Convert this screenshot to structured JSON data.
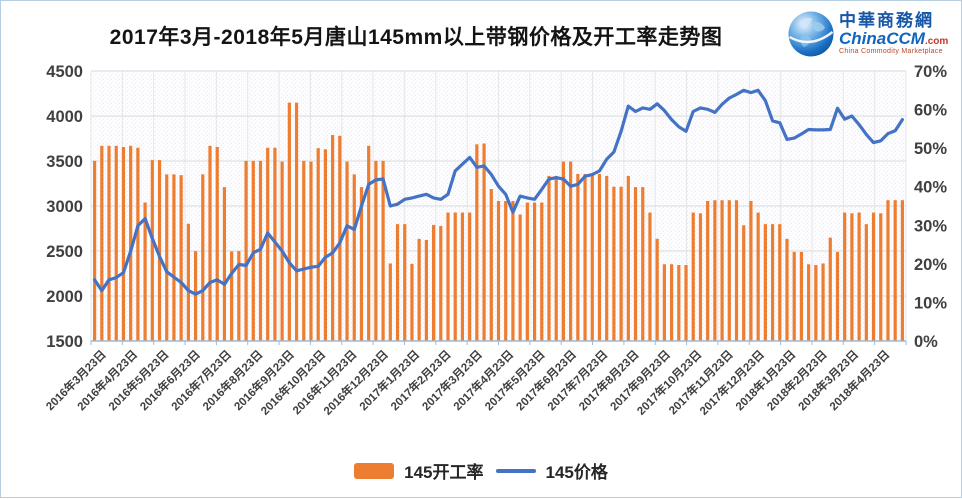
{
  "header": {
    "title": "2017年3月-2018年5月唐山145mm以上带钢价格及开工率走势图",
    "logo": {
      "cn_name": "中華商務網",
      "en_name": "ChinaCCM",
      "domain": ".com",
      "tagline": "China Commodity Marketplace"
    }
  },
  "chart_data": {
    "type": "combo",
    "title": "2017年3月-2018年5月唐山145mm以上带钢价格及开工率走势图",
    "grid": true,
    "legend_position": "bottom",
    "left_axis": {
      "min": 1500,
      "max": 4500,
      "step": 500,
      "tick_labels": [
        "4500",
        "4000",
        "3500",
        "3000",
        "2500",
        "2000",
        "1500"
      ]
    },
    "right_axis": {
      "min": 0,
      "max": 70,
      "step": 10,
      "tick_labels": [
        "70%",
        "60%",
        "50%",
        "40%",
        "30%",
        "20%",
        "10%",
        "0%"
      ]
    },
    "x_labels": [
      "2016年3月23日",
      "2016年4月23日",
      "2016年5月23日",
      "2016年6月23日",
      "2016年7月23日",
      "2016年8月23日",
      "2016年9月23日",
      "2016年10月23日",
      "2016年11月23日",
      "2016年12月23日",
      "2017年1月23日",
      "2017年2月23日",
      "2017年3月23日",
      "2017年4月23日",
      "2017年5月23日",
      "2017年6月23日",
      "2017年7月23日",
      "2017年8月23日",
      "2017年9月23日",
      "2017年10月23日",
      "2017年11月23日",
      "2017年12月23日",
      "2018年1月23日",
      "2018年2月23日",
      "2018年3月23日",
      "2018年4月23日"
    ],
    "series": [
      {
        "name": "145开工率",
        "type": "bar",
        "axis": "right",
        "unit": "%",
        "color": "#ED7D31",
        "values": [
          46.7,
          50.6,
          50.6,
          50.6,
          50.3,
          50.6,
          50.1,
          35.9,
          46.9,
          46.9,
          43.2,
          43.2,
          43,
          30.4,
          23.3,
          43.2,
          50.6,
          50.3,
          39.9,
          23.2,
          23.3,
          46.7,
          46.7,
          46.7,
          50.1,
          50.1,
          46.5,
          61.8,
          61.8,
          46.7,
          46.5,
          50,
          49.7,
          53.4,
          53.2,
          46.5,
          43.2,
          39.9,
          50.6,
          46.7,
          46.7,
          20.1,
          30.3,
          30.3,
          20,
          26.5,
          26.2,
          30.1,
          29.8,
          33.3,
          33.3,
          33.3,
          33.3,
          51,
          51.2,
          39.4,
          36.3,
          36.3,
          36.3,
          32.8,
          35.9,
          35.9,
          35.9,
          42.8,
          42.8,
          46.5,
          46.5,
          43.3,
          43.3,
          43.3,
          43.3,
          42.8,
          40,
          40,
          42.8,
          39.9,
          39.9,
          33.3,
          26.5,
          19.9,
          19.9,
          19.7,
          19.7,
          33.3,
          33.1,
          36.3,
          36.5,
          36.5,
          36.5,
          36.5,
          30,
          36.3,
          33.3,
          30.3,
          30.3,
          30.3,
          26.5,
          23.1,
          23.1,
          19.9,
          19.7,
          20.1,
          26.8,
          23.1,
          33.3,
          33.1,
          33.3,
          30.3,
          33.3,
          33.1,
          36.5,
          36.5,
          36.5
        ]
      },
      {
        "name": "145价格",
        "type": "line",
        "axis": "left",
        "unit": "元",
        "color": "#4472C4",
        "values": [
          2180,
          2060,
          2180,
          2205,
          2260,
          2500,
          2780,
          2860,
          2640,
          2440,
          2270,
          2210,
          2150,
          2060,
          2020,
          2060,
          2150,
          2180,
          2130,
          2250,
          2350,
          2340,
          2480,
          2520,
          2700,
          2600,
          2500,
          2370,
          2280,
          2300,
          2320,
          2330,
          2430,
          2480,
          2590,
          2780,
          2740,
          3000,
          3240,
          3290,
          3300,
          3000,
          3020,
          3075,
          3090,
          3110,
          3130,
          3090,
          3075,
          3130,
          3390,
          3465,
          3540,
          3430,
          3445,
          3350,
          3220,
          3130,
          2930,
          3110,
          3090,
          3075,
          3185,
          3300,
          3315,
          3300,
          3220,
          3240,
          3330,
          3350,
          3390,
          3520,
          3600,
          3830,
          4110,
          4050,
          4090,
          4075,
          4135,
          4060,
          3960,
          3880,
          3830,
          4050,
          4090,
          4075,
          4040,
          4130,
          4200,
          4240,
          4285,
          4260,
          4285,
          4170,
          3945,
          3925,
          3740,
          3755,
          3800,
          3850,
          3845,
          3845,
          3850,
          4085,
          3965,
          4000,
          3905,
          3795,
          3705,
          3725,
          3805,
          3835,
          3960
        ]
      }
    ],
    "colors": {
      "bar": "#ED7D31",
      "line": "#4472C4",
      "gridline": "#d8dadd",
      "axis_labels": "#404040"
    }
  }
}
